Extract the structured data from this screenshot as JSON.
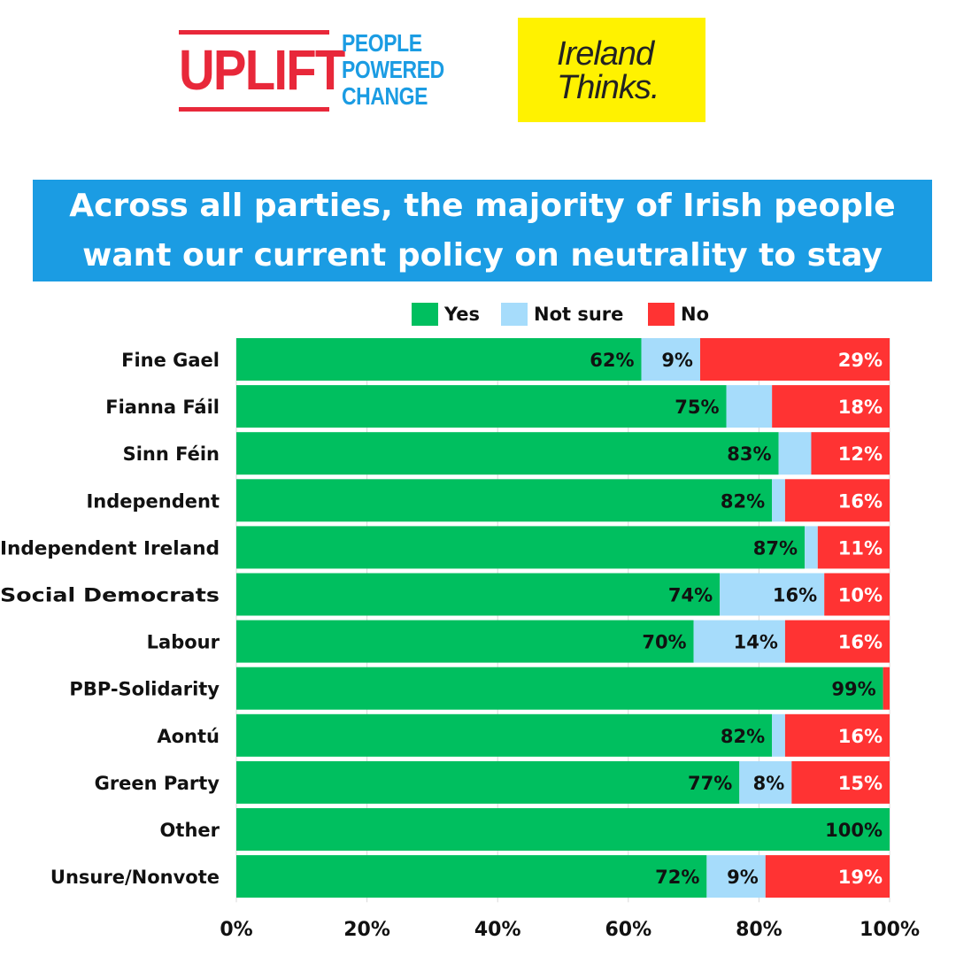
{
  "logos": {
    "uplift": {
      "word": "UPLIFT",
      "tagline": [
        "PEOPLE",
        "POWERED",
        "CHANGE"
      ]
    },
    "ireland_thinks": {
      "lines": [
        "Ireland",
        "Thinks."
      ]
    }
  },
  "colors": {
    "yes": "#00bf5f",
    "not_sure": "#a6dcfb",
    "no": "#ff3333",
    "title_bg": "#1b9ce3",
    "brand_red": "#e8283a",
    "brand_yellow": "#fff200"
  },
  "chart_data": {
    "type": "bar",
    "orientation": "horizontal",
    "stacked": true,
    "title": "Across all parties, the majority of Irish people want our current policy on neutrality to stay",
    "categories": [
      "Fine Gael",
      "Fianna Fáil",
      "Sinn Féin",
      "Independent",
      "Independent Ireland",
      "Social Democrats",
      "Labour",
      "PBP-Solidarity",
      "Aontú",
      "Green Party",
      "Other",
      "Unsure/Nonvote"
    ],
    "series": [
      {
        "name": "Yes",
        "values": [
          62,
          75,
          83,
          82,
          87,
          74,
          70,
          99,
          82,
          77,
          100,
          72
        ],
        "labels": [
          "62%",
          "75%",
          "83%",
          "82%",
          "87%",
          "74%",
          "70%",
          "99%",
          "82%",
          "77%",
          "100%",
          "72%"
        ]
      },
      {
        "name": "Not sure",
        "values": [
          9,
          7,
          5,
          2,
          2,
          16,
          14,
          0,
          2,
          8,
          0,
          9
        ],
        "labels": [
          "9%",
          "",
          "",
          "",
          "",
          "16%",
          "14%",
          "",
          "",
          "8%",
          "",
          "9%"
        ]
      },
      {
        "name": "No",
        "values": [
          29,
          18,
          12,
          16,
          11,
          10,
          16,
          1,
          16,
          15,
          0,
          19
        ],
        "labels": [
          "29%",
          "18%",
          "12%",
          "16%",
          "11%",
          "10%",
          "16%",
          "",
          "16%",
          "15%",
          "",
          "19%"
        ]
      }
    ],
    "xaxis": {
      "ticks": [
        "0%",
        "20%",
        "40%",
        "60%",
        "80%",
        "100%"
      ],
      "range": [
        0,
        100
      ]
    },
    "legend": {
      "position": "top",
      "items": [
        "Yes",
        "Not sure",
        "No"
      ]
    },
    "grid": true
  }
}
